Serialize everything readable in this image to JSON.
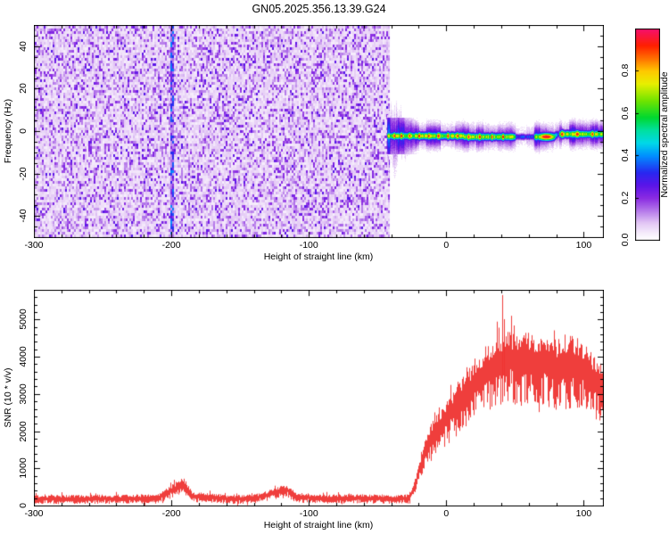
{
  "title": "GN05.2025.356.13.39.G24",
  "top_panel": {
    "ylabel": "Frequency (Hz)",
    "xlabel": "Height of straight line (km)"
  },
  "bottom_panel": {
    "ylabel": "SNR (10 * v/v)",
    "xlabel": "Height of straight line (km)"
  },
  "colorbar": {
    "label": "Normalized spectral amplitude",
    "tick_labels": [
      "0.0",
      "0.2",
      "0.4",
      "0.6",
      "0.8"
    ],
    "tick_values": [
      0.0,
      0.2,
      0.4,
      0.6,
      0.8
    ],
    "range": [
      0,
      1
    ]
  },
  "colors": {
    "trace": "#ee3432",
    "axis": "#000000",
    "background": "#ffffff"
  },
  "colormap_stops": [
    [
      0.0,
      "#ffffff"
    ],
    [
      0.03,
      "#f7effc"
    ],
    [
      0.08,
      "#e3c8f5"
    ],
    [
      0.14,
      "#b478ea"
    ],
    [
      0.2,
      "#8a2be2"
    ],
    [
      0.26,
      "#5a14e8"
    ],
    [
      0.32,
      "#2828f0"
    ],
    [
      0.4,
      "#0090ff"
    ],
    [
      0.46,
      "#00d8e8"
    ],
    [
      0.52,
      "#00e0a0"
    ],
    [
      0.58,
      "#00d830"
    ],
    [
      0.66,
      "#70e400"
    ],
    [
      0.74,
      "#e8f000"
    ],
    [
      0.8,
      "#ffc800"
    ],
    [
      0.86,
      "#ff7000"
    ],
    [
      0.92,
      "#ff2000"
    ],
    [
      1.0,
      "#f50f6e"
    ]
  ],
  "seed": 424242,
  "chart_data": [
    {
      "type": "heatmap",
      "title": "GN05.2025.356.13.39.G24",
      "xlabel": "Height of straight line (km)",
      "ylabel": "Frequency (Hz)",
      "xlim": [
        -300,
        114
      ],
      "ylim": [
        -50,
        50
      ],
      "x_ticks": [
        -300,
        -200,
        -100,
        0,
        100
      ],
      "y_ticks": [
        -40,
        -20,
        0,
        20,
        40
      ],
      "x_minor_step": 20,
      "y_minor_step": 5,
      "grid": false,
      "legend_position": "colorbar-right",
      "noise_field": {
        "x_range": [
          -300,
          -42
        ],
        "amplitude_range": [
          0.02,
          0.28
        ],
        "dark_streak_x_km": -200
      },
      "burst_zone": {
        "x_range": [
          -43,
          -24
        ],
        "max_freq_extent_hz": 25
      },
      "signal_stripe": {
        "x_range": [
          -43,
          114
        ],
        "center_hz_keypoints_x": [
          -43,
          -10,
          30,
          78,
          81,
          114
        ],
        "center_hz_keypoints_f": [
          -2.0,
          -2.2,
          -2.4,
          -2.5,
          -1.2,
          -1.1
        ],
        "core_halfwidth_hz": 1.3,
        "halo_halfwidth_hz": 3.6,
        "core_amplitude": 0.74,
        "red_blobs_km": [
          [
            -38,
            2
          ],
          [
            -33,
            2.5
          ],
          [
            -27,
            2
          ],
          [
            -20,
            2.5
          ],
          [
            -13,
            2
          ],
          [
            -6,
            3
          ],
          [
            1,
            2.5
          ],
          [
            8,
            2
          ],
          [
            16,
            2.5
          ],
          [
            24,
            3
          ],
          [
            33,
            2
          ],
          [
            41,
            2.5
          ],
          [
            72.5,
            13
          ],
          [
            84,
            3
          ],
          [
            95,
            4
          ],
          [
            106,
            2
          ]
        ],
        "weak_zones_km": [
          [
            50,
            64
          ],
          [
            78,
            82
          ]
        ]
      }
    },
    {
      "type": "line",
      "xlabel": "Height of straight line (km)",
      "ylabel": "SNR (10 * v/v)",
      "xlim": [
        -300,
        114
      ],
      "ylim": [
        0,
        5800
      ],
      "x_ticks": [
        -300,
        -200,
        -100,
        0,
        100
      ],
      "y_ticks": [
        0,
        1000,
        2000,
        3000,
        4000,
        5000
      ],
      "x_minor_step": 20,
      "y_minor_step": 200,
      "grid": false,
      "series": [
        {
          "name": "SNR",
          "color": "#ee3432",
          "x": [
            -300,
            -270,
            -240,
            -210,
            -197,
            -192,
            -185,
            -160,
            -140,
            -122,
            -116,
            -110,
            -90,
            -70,
            -50,
            -35,
            -28,
            -25,
            -22,
            -18,
            -14,
            -10,
            -6,
            -2,
            2,
            6,
            10,
            15,
            20,
            25,
            30,
            35,
            40,
            45,
            50,
            55,
            60,
            65,
            70,
            75,
            80,
            85,
            90,
            95,
            100,
            105,
            110,
            114
          ],
          "y": [
            185,
            190,
            195,
            205,
            480,
            620,
            260,
            195,
            200,
            380,
            430,
            240,
            200,
            210,
            200,
            195,
            200,
            380,
            700,
            1200,
            1600,
            1950,
            2150,
            2300,
            2500,
            2700,
            2900,
            3100,
            3300,
            3500,
            3700,
            3850,
            3950,
            4050,
            3950,
            3900,
            3950,
            3900,
            3880,
            3850,
            3800,
            3900,
            3850,
            3800,
            3650,
            3500,
            3300,
            3150
          ]
        }
      ],
      "peak_spike": {
        "x": 40.5,
        "y": 5660
      }
    }
  ]
}
